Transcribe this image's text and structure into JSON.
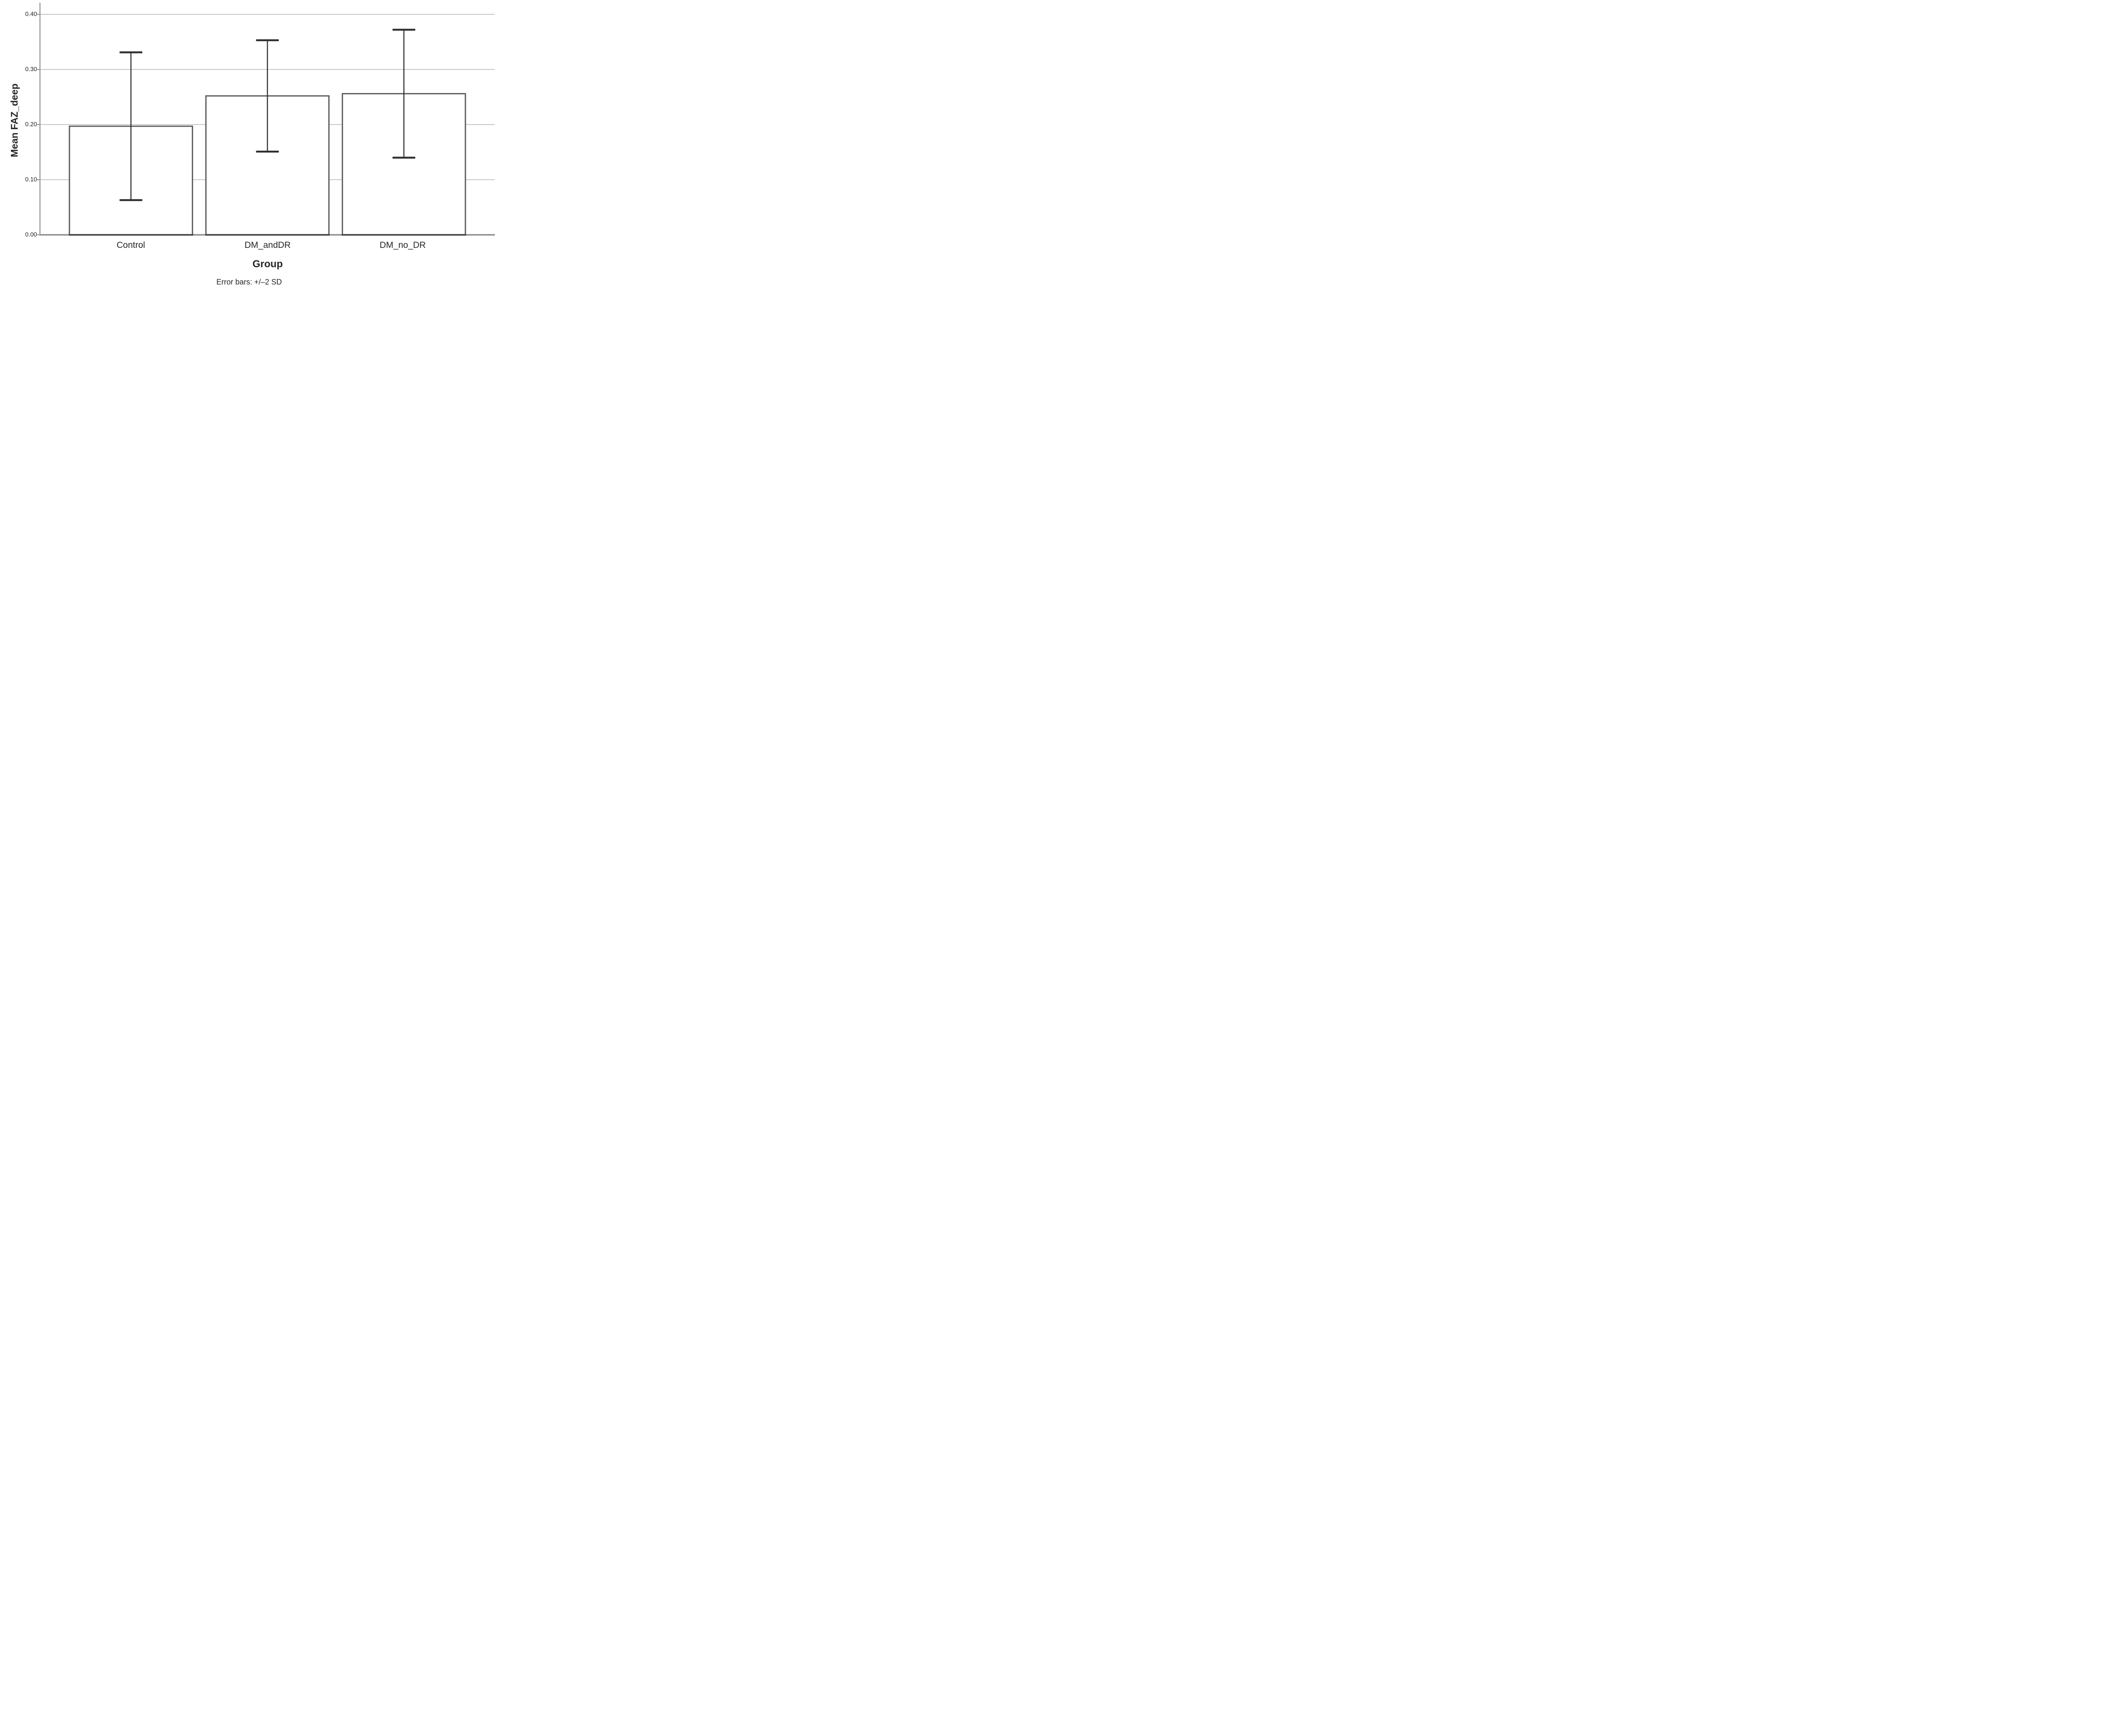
{
  "chart_data": {
    "type": "bar",
    "title": "",
    "xlabel": "Group",
    "ylabel": "Mean FAZ_deep",
    "caption": "Error bars: +/–2 SD",
    "categories": [
      "Control",
      "DM_andDR",
      "DM_no_DR"
    ],
    "values": [
      0.197,
      0.252,
      0.256
    ],
    "error_bars": {
      "kind": "+/-2 SD",
      "sd": [
        0.067,
        0.05,
        0.058
      ],
      "low": [
        0.063,
        0.151,
        0.14
      ],
      "high": [
        0.331,
        0.353,
        0.372
      ]
    },
    "yticks": [
      0.0,
      0.1,
      0.2,
      0.3,
      0.4
    ],
    "ytick_labels": [
      "0.00",
      "0.10",
      "0.20",
      "0.30",
      "0.40"
    ],
    "ylim": [
      0,
      0.421
    ],
    "grid": "horizontal",
    "legend": "none",
    "colors": {
      "background": "#ffffff",
      "gridline": "#c6c6c6",
      "axis": "#8e8e8e",
      "bar_fill": "#ffffff",
      "bar_border": "#5a5a5a",
      "bar_bottom": "#3d3d3d",
      "error_bar": "#2e2e2e",
      "text": "#262626"
    }
  }
}
